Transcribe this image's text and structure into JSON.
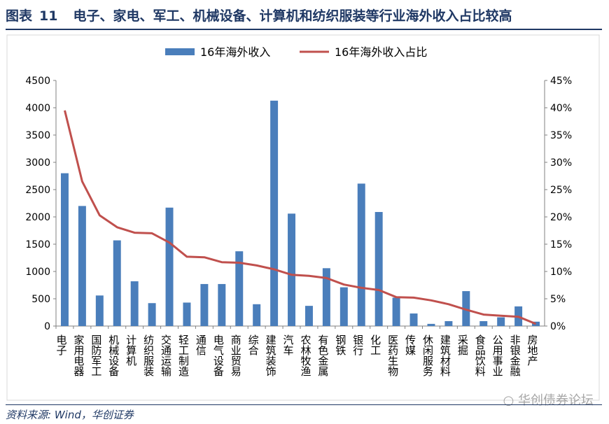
{
  "figure": {
    "label": "图表",
    "number": "11",
    "title": "电子、家电、军工、机械设备、计算机和纺织服装等行业海外收入占比较高",
    "source": "资料来源: Wind，华创证券",
    "watermark": "华创债券论坛"
  },
  "chart_data": {
    "type": "bar",
    "categories": [
      "电子",
      "家用电器",
      "国防军工",
      "机械设备",
      "计算机",
      "纺织服装",
      "交通运输",
      "轻工制造",
      "通信",
      "电气设备",
      "商业贸易",
      "综合",
      "建筑装饰",
      "汽车",
      "农林牧渔",
      "有色金属",
      "钢铁",
      "银行",
      "化工",
      "医药生物",
      "传媒",
      "休闲服务",
      "建筑材料",
      "采掘",
      "食品饮料",
      "公用事业",
      "非银金融",
      "房地产"
    ],
    "series": [
      {
        "name": "16年海外收入",
        "kind": "bar",
        "axis": "left",
        "color": "#4a7ebb",
        "values": [
          2800,
          2200,
          560,
          1570,
          820,
          420,
          2170,
          430,
          770,
          770,
          1370,
          400,
          4130,
          2060,
          370,
          1060,
          710,
          2610,
          2090,
          520,
          230,
          40,
          90,
          640,
          90,
          160,
          360,
          80
        ]
      },
      {
        "name": "16年海外收入占比",
        "kind": "line",
        "axis": "right",
        "color": "#c0504d",
        "values": [
          0.395,
          0.265,
          0.203,
          0.181,
          0.171,
          0.17,
          0.153,
          0.127,
          0.126,
          0.117,
          0.116,
          0.111,
          0.104,
          0.094,
          0.092,
          0.088,
          0.076,
          0.07,
          0.066,
          0.053,
          0.052,
          0.047,
          0.04,
          0.03,
          0.021,
          0.019,
          0.017,
          0.004
        ]
      }
    ],
    "yaxis_left": {
      "min": 0,
      "max": 4500,
      "ticks": [
        "0",
        "500",
        "1000",
        "1500",
        "2000",
        "2500",
        "3000",
        "3500",
        "4000",
        "4500"
      ]
    },
    "yaxis_right": {
      "min": 0,
      "max": 0.45,
      "ticks": [
        "0%",
        "5%",
        "10%",
        "15%",
        "20%",
        "25%",
        "30%",
        "35%",
        "40%",
        "45%"
      ]
    },
    "legend": {
      "position": "top",
      "items": [
        "16年海外收入",
        "16年海外收入占比"
      ]
    },
    "grid": false
  }
}
